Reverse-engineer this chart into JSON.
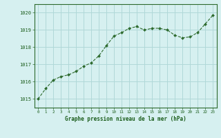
{
  "x": [
    0,
    1,
    2,
    3,
    4,
    5,
    6,
    7,
    8,
    9,
    10,
    11,
    12,
    13,
    14,
    15,
    16,
    17,
    18,
    19,
    20,
    21,
    22,
    23
  ],
  "y": [
    1015.0,
    1015.6,
    1016.1,
    1016.3,
    1016.4,
    1016.6,
    1016.9,
    1017.1,
    1017.5,
    1018.1,
    1018.65,
    1018.85,
    1019.1,
    1019.2,
    1019.0,
    1019.1,
    1019.1,
    1019.0,
    1018.7,
    1018.55,
    1018.6,
    1018.85,
    1019.35,
    1019.85
  ],
  "line_color": "#2d6a2d",
  "marker_color": "#2d6a2d",
  "bg_color": "#d6f0f0",
  "grid_color": "#b0d8d8",
  "xlabel": "Graphe pression niveau de la mer (hPa)",
  "xlabel_color": "#1a5c1a",
  "tick_color": "#1a5c1a",
  "ylim": [
    1014.5,
    1020.5
  ],
  "xlim": [
    -0.5,
    23.5
  ],
  "yticks": [
    1015,
    1016,
    1017,
    1018,
    1019,
    1020
  ],
  "xticks": [
    0,
    1,
    2,
    3,
    4,
    5,
    6,
    7,
    8,
    9,
    10,
    11,
    12,
    13,
    14,
    15,
    16,
    17,
    18,
    19,
    20,
    21,
    22,
    23
  ],
  "spine_color": "#2d6a2d",
  "fig_bg": "#d6f0f0"
}
